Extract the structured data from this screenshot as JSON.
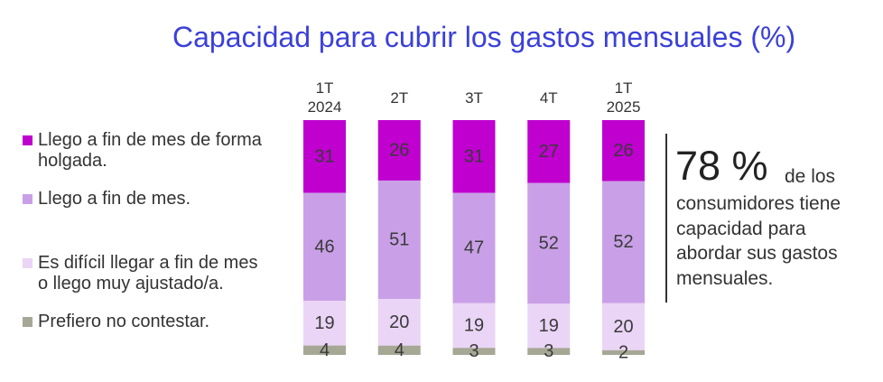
{
  "chart_data": {
    "type": "bar",
    "stacked": true,
    "title": "Capacidad para cubrir los gastos mensuales (%)",
    "categories": [
      "1T\n2024",
      "2T",
      "3T",
      "4T",
      "1T\n2025"
    ],
    "series": [
      {
        "name": "Llego a fin de mes de forma\nholgada.",
        "color": "#bf00cf",
        "values": [
          31,
          26,
          31,
          27,
          26
        ]
      },
      {
        "name": "Llego a fin de mes.",
        "color": "#c9a0e7",
        "values": [
          46,
          51,
          47,
          52,
          52
        ]
      },
      {
        "name": "Es difícil llegar a fin de mes\no llego muy ajustado/a.",
        "color": "#ead5f6",
        "values": [
          19,
          20,
          19,
          19,
          20
        ]
      },
      {
        "name": "Prefiero no contestar.",
        "color": "#a7a796",
        "values": [
          4,
          4,
          3,
          3,
          2
        ]
      }
    ],
    "legend": "left",
    "grid": false,
    "data_labels": true
  },
  "callout": {
    "value": "78 %",
    "lead": "de los",
    "text": "consumidores tiene\ncapacidad para\nabordar sus gastos\nmensuales."
  },
  "colors": {
    "title": "#3b40d8",
    "text": "#333333"
  }
}
